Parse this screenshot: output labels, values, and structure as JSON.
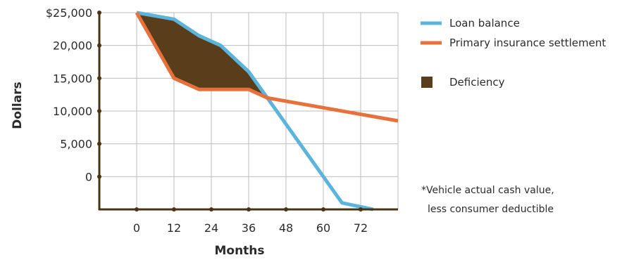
{
  "chart_data": {
    "type": "line",
    "xlabel": "Months",
    "ylabel": "Dollars",
    "x_ticks": [
      "0",
      "12",
      "24",
      "36",
      "48",
      "60",
      "72"
    ],
    "y_ticks": [
      "0",
      "5,000",
      "10,000",
      "15,000",
      "20,000",
      "$25,000"
    ],
    "xlim": [
      -12,
      84
    ],
    "ylim": [
      -5000,
      25000
    ],
    "grid": true,
    "legend_position": "top-right",
    "series": [
      {
        "name": "Loan balance",
        "color": "#5ab4dc",
        "points": [
          [
            0,
            25000
          ],
          [
            12,
            24000
          ],
          [
            20,
            21500
          ],
          [
            27,
            20000
          ],
          [
            36,
            16000
          ],
          [
            42,
            12000
          ],
          [
            54,
            4000
          ],
          [
            66,
            -4000
          ],
          [
            76,
            -5000
          ]
        ]
      },
      {
        "name": "Primary insurance settlement",
        "color": "#e8703a",
        "points": [
          [
            0,
            25000
          ],
          [
            12,
            15000
          ],
          [
            20,
            13300
          ],
          [
            36,
            13300
          ],
          [
            42,
            12000
          ],
          [
            84,
            8500
          ]
        ]
      }
    ],
    "areas": [
      {
        "name": "Deficiency",
        "color": "#5a3d1a"
      }
    ],
    "annotation": {
      "line1": "*Vehicle actual cash value,",
      "line2": "less consumer deductible"
    }
  }
}
